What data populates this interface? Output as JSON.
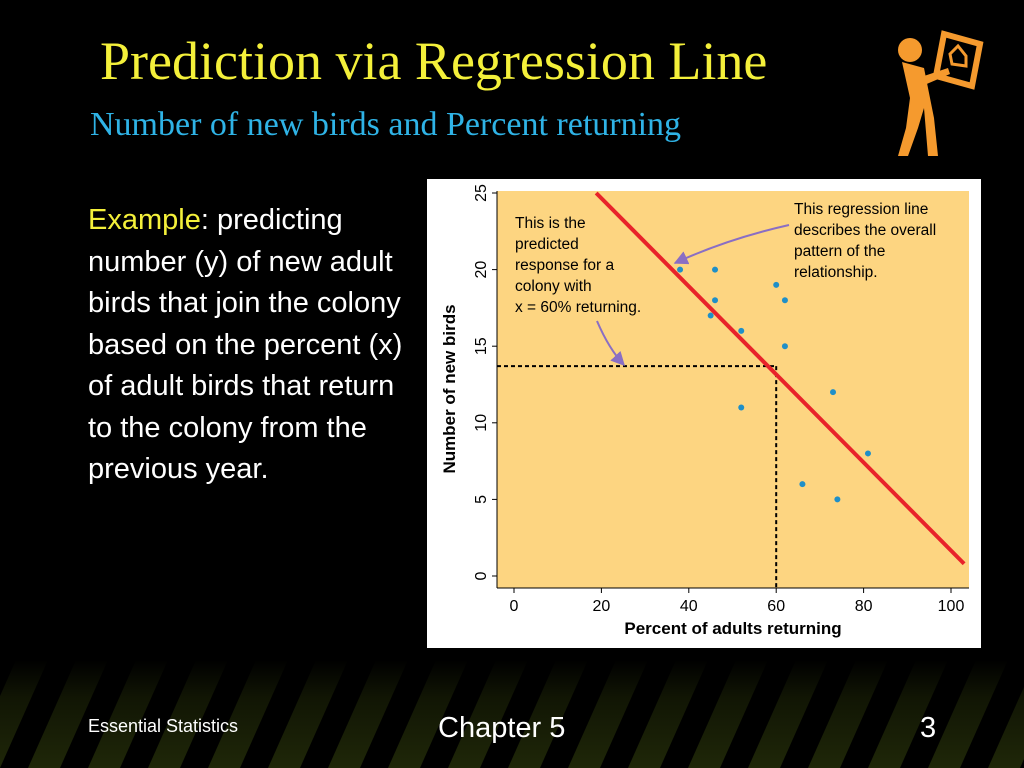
{
  "slide": {
    "title": "Prediction via Regression Line",
    "subtitle": "Number of new birds and Percent returning",
    "body_lead": "Example",
    "body_rest": ":  predicting number (y) of new adult birds that join the colony based on the percent (x) of adult birds that return to the colony from the previous year.",
    "footer_left": "Essential Statistics",
    "footer_center": "Chapter 5",
    "page_number": "3"
  },
  "colors": {
    "title": "#f4f03a",
    "subtitle": "#2fb3e6",
    "plot_background": "#fdd581",
    "regression_line": "#e8232a",
    "points": "#1f8fc8",
    "annotation_arrow": "#8a6ec4",
    "figure_icon": "#f59a2e"
  },
  "chart_data": {
    "type": "scatter",
    "xlabel": "Percent of adults returning",
    "ylabel": "Number of new birds",
    "xlim": [
      0,
      100
    ],
    "ylim": [
      0,
      25
    ],
    "x_ticks": [
      "0",
      "20",
      "40",
      "60",
      "80",
      "100"
    ],
    "y_ticks": [
      "0",
      "5",
      "10",
      "15",
      "20",
      "25"
    ],
    "grid": false,
    "points": [
      {
        "x": 38,
        "y": 20
      },
      {
        "x": 46,
        "y": 20
      },
      {
        "x": 45,
        "y": 17
      },
      {
        "x": 46,
        "y": 18
      },
      {
        "x": 52,
        "y": 16
      },
      {
        "x": 52,
        "y": 11
      },
      {
        "x": 60,
        "y": 19
      },
      {
        "x": 62,
        "y": 18
      },
      {
        "x": 62,
        "y": 15
      },
      {
        "x": 66,
        "y": 6
      },
      {
        "x": 73,
        "y": 12
      },
      {
        "x": 74,
        "y": 5
      },
      {
        "x": 81,
        "y": 8
      }
    ],
    "regression_line": {
      "x1": 18.8,
      "y1": 25,
      "x2": 103,
      "y2": 0.8
    },
    "prediction": {
      "x": 60,
      "y": 13.7
    },
    "annotations": [
      "This is the",
      "predicted",
      "response for a",
      "colony with",
      "x = 60% returning.",
      "This regression line",
      "describes the overall",
      "pattern of the",
      "relationship."
    ]
  }
}
